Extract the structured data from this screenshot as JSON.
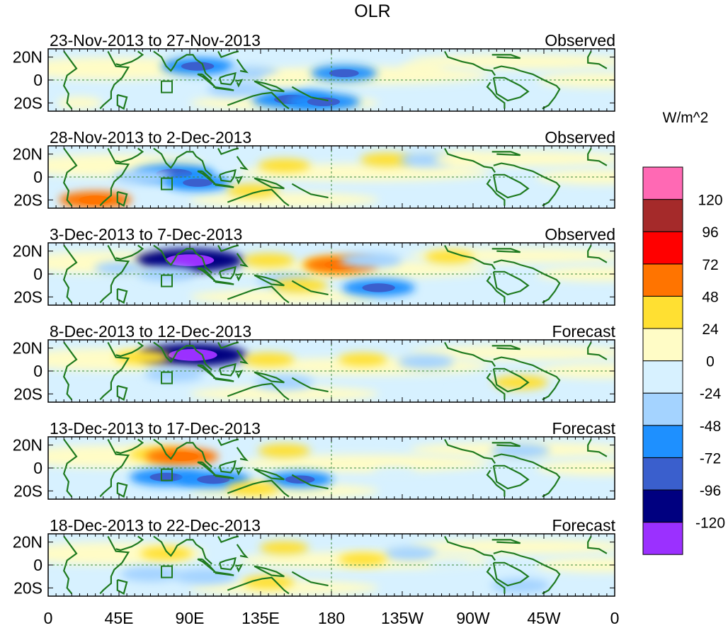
{
  "chart_data": {
    "type": "heatmap",
    "title": "OLR",
    "colorbar": {
      "unit": "W/m^2",
      "colors": [
        "#9b30ff",
        "#000080",
        "#3a5fcd",
        "#1e90ff",
        "#a4d3ff",
        "#d7f1ff",
        "#fffcc6",
        "#ffe032",
        "#ff7400",
        "#ff0000",
        "#a52a2a",
        "#ff69b4"
      ],
      "tick_labels": [
        "-120",
        "-96",
        "-72",
        "-48",
        "-24",
        "0",
        "24",
        "48",
        "72",
        "96",
        "120"
      ],
      "tick_values": [
        -120,
        -96,
        -72,
        -48,
        -24,
        0,
        24,
        48,
        72,
        96,
        120
      ]
    },
    "x_axis": {
      "tick_labels": [
        "0",
        "45E",
        "90E",
        "135E",
        "180",
        "135W",
        "90W",
        "45W",
        "0"
      ],
      "range_deg": [
        0,
        360
      ]
    },
    "y_axis": {
      "tick_labels": [
        "20N",
        "0",
        "20S"
      ],
      "range_deg": [
        -25,
        25
      ]
    },
    "panels": [
      {
        "period": "23-Nov-2013 to 27-Nov-2013",
        "status": "Observed",
        "features": [
          {
            "lon": 95,
            "lat": 12,
            "value": -60
          },
          {
            "lon": 130,
            "lat": 6,
            "value": -30
          },
          {
            "lon": 155,
            "lat": -17,
            "value": -70
          },
          {
            "lon": 175,
            "lat": -19,
            "value": -60
          },
          {
            "lon": 188,
            "lat": 6,
            "value": -50
          },
          {
            "lon": 120,
            "lat": -8,
            "value": -40
          },
          {
            "lon": 150,
            "lat": 0,
            "value": 20
          },
          {
            "lon": 238,
            "lat": 10,
            "value": 20
          },
          {
            "lon": 300,
            "lat": -8,
            "value": -20
          },
          {
            "lon": 20,
            "lat": -20,
            "value": 20
          }
        ]
      },
      {
        "period": "28-Nov-2013 to 2-Dec-2013",
        "status": "Observed",
        "features": [
          {
            "lon": 80,
            "lat": 3,
            "value": -70
          },
          {
            "lon": 60,
            "lat": 0,
            "value": -40
          },
          {
            "lon": 95,
            "lat": -5,
            "value": -50
          },
          {
            "lon": 150,
            "lat": 10,
            "value": 30
          },
          {
            "lon": 130,
            "lat": -12,
            "value": 30
          },
          {
            "lon": 30,
            "lat": -20,
            "value": 60
          },
          {
            "lon": 215,
            "lat": 15,
            "value": 30
          },
          {
            "lon": 240,
            "lat": 15,
            "value": -30
          },
          {
            "lon": 260,
            "lat": 15,
            "value": 20
          }
        ]
      },
      {
        "period": "3-Dec-2013 to 7-Dec-2013",
        "status": "Observed",
        "features": [
          {
            "lon": 90,
            "lat": 12,
            "value": -110
          },
          {
            "lon": 75,
            "lat": 0,
            "value": -40
          },
          {
            "lon": 180,
            "lat": 8,
            "value": 40
          },
          {
            "lon": 186,
            "lat": 8,
            "value": 60
          },
          {
            "lon": 210,
            "lat": -12,
            "value": -60
          },
          {
            "lon": 205,
            "lat": 12,
            "value": -45
          },
          {
            "lon": 150,
            "lat": -5,
            "value": -35
          },
          {
            "lon": 140,
            "lat": 12,
            "value": 30
          },
          {
            "lon": 160,
            "lat": -10,
            "value": 35
          },
          {
            "lon": 255,
            "lat": 15,
            "value": 25
          },
          {
            "lon": 45,
            "lat": 5,
            "value": -25
          }
        ]
      },
      {
        "period": "8-Dec-2013 to 12-Dec-2013",
        "status": "Forecast",
        "features": [
          {
            "lon": 92,
            "lat": 14,
            "value": -110
          },
          {
            "lon": 60,
            "lat": 12,
            "value": 35
          },
          {
            "lon": 140,
            "lat": 10,
            "value": 30
          },
          {
            "lon": 200,
            "lat": 10,
            "value": 25
          },
          {
            "lon": 80,
            "lat": -3,
            "value": -40
          },
          {
            "lon": 150,
            "lat": -10,
            "value": -40
          },
          {
            "lon": 240,
            "lat": 8,
            "value": -35
          },
          {
            "lon": 300,
            "lat": -10,
            "value": 35
          },
          {
            "lon": 270,
            "lat": -20,
            "value": -20
          }
        ]
      },
      {
        "period": "13-Dec-2013 to 17-Dec-2013",
        "status": "Forecast",
        "features": [
          {
            "lon": 70,
            "lat": 12,
            "value": 40
          },
          {
            "lon": 85,
            "lat": 10,
            "value": 60
          },
          {
            "lon": 75,
            "lat": -8,
            "value": -60
          },
          {
            "lon": 105,
            "lat": -10,
            "value": -60
          },
          {
            "lon": 160,
            "lat": -10,
            "value": -50
          },
          {
            "lon": 150,
            "lat": 15,
            "value": 30
          },
          {
            "lon": 220,
            "lat": -5,
            "value": -20
          },
          {
            "lon": 300,
            "lat": 15,
            "value": -40
          },
          {
            "lon": 130,
            "lat": -18,
            "value": 30
          }
        ]
      },
      {
        "period": "18-Dec-2013 to 22-Dec-2013",
        "status": "Forecast",
        "features": [
          {
            "lon": 75,
            "lat": 10,
            "value": 30
          },
          {
            "lon": 150,
            "lat": 15,
            "value": 25
          },
          {
            "lon": 65,
            "lat": -8,
            "value": -40
          },
          {
            "lon": 100,
            "lat": -10,
            "value": -45
          },
          {
            "lon": 140,
            "lat": -15,
            "value": 30
          },
          {
            "lon": 230,
            "lat": 10,
            "value": -30
          },
          {
            "lon": 300,
            "lat": -18,
            "value": -40
          },
          {
            "lon": 255,
            "lat": 0,
            "value": -20
          },
          {
            "lon": 200,
            "lat": 5,
            "value": 25
          }
        ]
      }
    ]
  }
}
